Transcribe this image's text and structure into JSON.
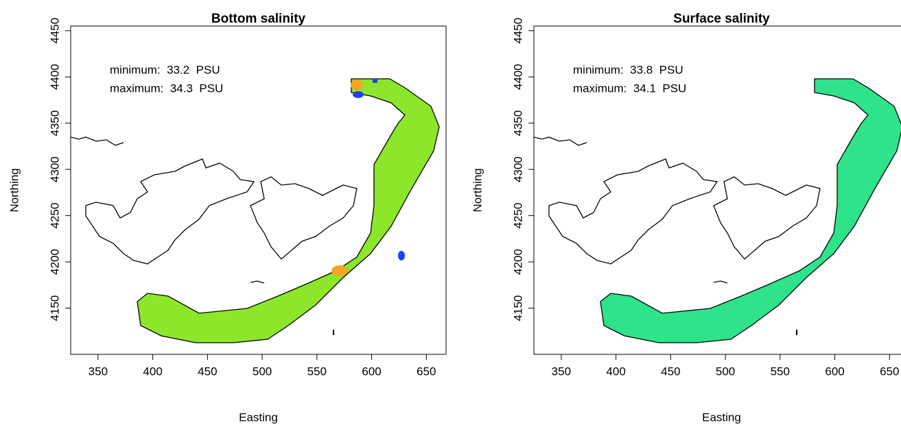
{
  "chart_data": [
    {
      "type": "map",
      "title": "Bottom salinity",
      "xlabel": "Easting",
      "ylabel": "Northing",
      "annotations": [
        "minimum:  33.2  PSU",
        "maximum:  34.3  PSU"
      ],
      "xlim": [
        325,
        668
      ],
      "ylim": [
        4100,
        4455
      ],
      "xticks": [
        350,
        400,
        450,
        500,
        550,
        600,
        650
      ],
      "yticks": [
        4150,
        4200,
        4250,
        4300,
        4350,
        4400,
        4450
      ]
    },
    {
      "type": "map",
      "title": "Surface salinity",
      "xlabel": "Easting",
      "ylabel": "Northing",
      "annotations": [
        "minimum:  33.8  PSU",
        "maximum:  34.1  PSU"
      ],
      "xlim": [
        325,
        668
      ],
      "ylim": [
        4100,
        4455
      ],
      "xticks": [
        350,
        400,
        450,
        500,
        550,
        600,
        650
      ],
      "yticks": [
        4150,
        4200,
        4250,
        4300,
        4350,
        4400,
        4450
      ]
    }
  ]
}
